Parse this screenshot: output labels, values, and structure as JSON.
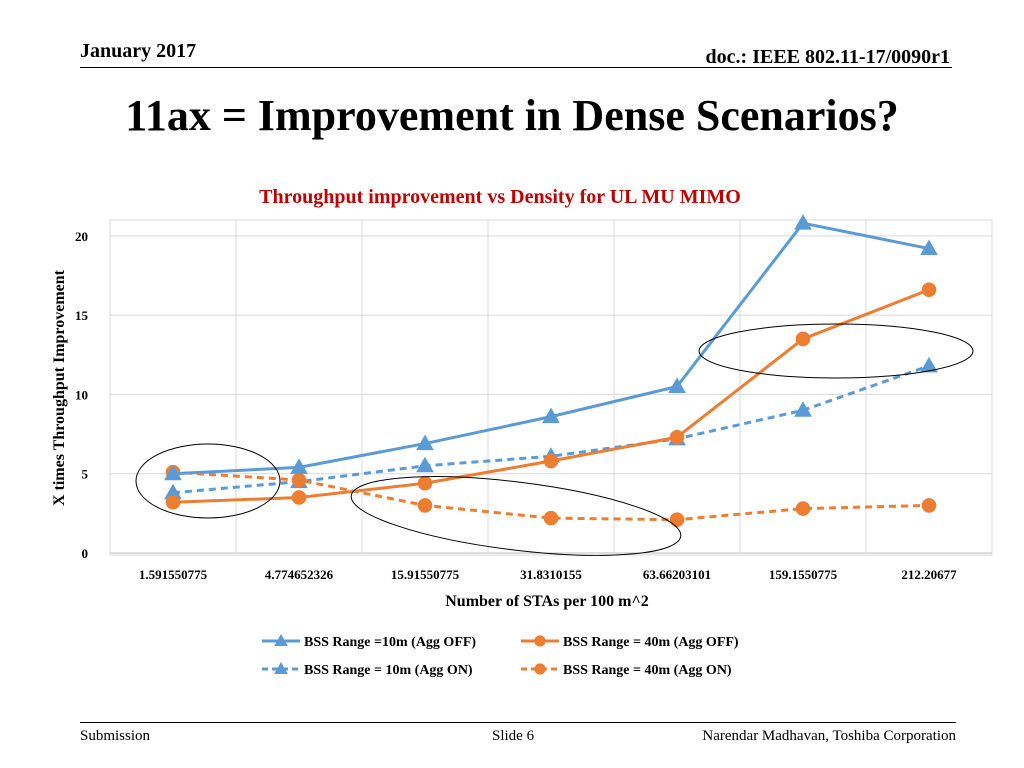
{
  "header": {
    "date": "January 2017",
    "doc": "doc.: IEEE 802.11-17/0090r1"
  },
  "slide_title": "11ax = Improvement in Dense Scenarios?",
  "footer": {
    "left": "Submission",
    "center": "Slide 6",
    "right": "Narendar Madhavan, Toshiba Corporation"
  },
  "colors": {
    "blue": "#5b9bd5",
    "orange": "#ed7d31",
    "title_red": "#c00000",
    "grid": "#d9d9d9"
  },
  "chart_data": {
    "type": "line",
    "title": "Throughput improvement vs Density for UL MU MIMO",
    "xlabel": "Number of STAs per 100 m^2",
    "ylabel": "X times Throughput Improvement",
    "ylim": [
      0,
      21
    ],
    "yticks": [
      0,
      5,
      10,
      15,
      20
    ],
    "categories": [
      "1.591550775",
      "4.774652326",
      "15.91550775",
      "31.8310155",
      "63.66203101",
      "159.1550775",
      "212.20677"
    ],
    "series": [
      {
        "name": "BSS Range =10m (Agg OFF)",
        "color": "#5b9bd5",
        "dashed": false,
        "marker": "triangle",
        "values": [
          5.0,
          5.4,
          6.9,
          8.6,
          10.5,
          20.8,
          19.2
        ]
      },
      {
        "name": "BSS Range = 40m (Agg OFF)",
        "color": "#ed7d31",
        "dashed": false,
        "marker": "circle",
        "values": [
          3.2,
          3.5,
          4.4,
          5.8,
          7.3,
          13.5,
          16.6
        ]
      },
      {
        "name": "BSS Range = 10m (Agg ON)",
        "color": "#5b9bd5",
        "dashed": true,
        "marker": "triangle",
        "values": [
          3.8,
          4.5,
          5.5,
          6.1,
          7.2,
          9.0,
          11.8
        ]
      },
      {
        "name": "BSS Range = 40m (Agg ON)",
        "color": "#ed7d31",
        "dashed": true,
        "marker": "circle",
        "values": [
          5.1,
          4.6,
          3.0,
          2.2,
          2.1,
          2.8,
          3.0
        ]
      }
    ],
    "grid": true,
    "legend_position": "bottom"
  }
}
